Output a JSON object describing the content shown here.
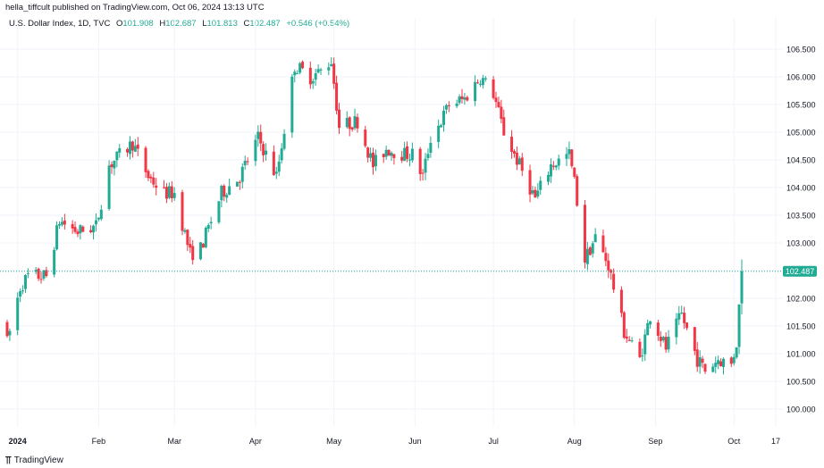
{
  "header": {
    "publisher": "hella_tiffcult published on TradingView.com, Oct 06, 2024 13:13 UTC"
  },
  "legend": {
    "symbol": "U.S. Dollar Index, 1D, TVC",
    "o_label": "O",
    "o_value": "101.908",
    "h_label": "H",
    "h_value": "102.687",
    "l_label": "L",
    "l_value": "101.813",
    "c_label": "C",
    "c_value": "102.487",
    "change": "+0.546 (+0.54%)"
  },
  "footer": {
    "brand": "TradingView",
    "logo_icon": "tradingview-logo-icon"
  },
  "colors": {
    "up": "#22ab94",
    "down": "#f23645",
    "grid": "#f0f3fa",
    "last_price_line": "#22ab94",
    "text": "#131722"
  },
  "chart_data": {
    "type": "candlestick",
    "title": "U.S. Dollar Index, 1D, TVC",
    "x_tick_labels": [
      "2024",
      "Feb",
      "Mar",
      "Apr",
      "May",
      "Jun",
      "Jul",
      "Aug",
      "Sep",
      "Oct",
      "17"
    ],
    "y_tick_labels": [
      "100.000",
      "100.500",
      "101.000",
      "101.500",
      "102.000",
      "102.500",
      "103.000",
      "103.500",
      "104.000",
      "104.500",
      "105.000",
      "105.500",
      "106.000",
      "106.500"
    ],
    "ylim": [
      99.55,
      106.8
    ],
    "last_price": 102.487,
    "last_price_label": "102.487",
    "grid": true,
    "axis_side": "right",
    "close_path": [
      [
        "2023-12-28",
        101.2
      ],
      [
        "2024-01-02",
        102.2
      ],
      [
        "2024-01-05",
        102.4
      ],
      [
        "2024-01-12",
        102.4
      ],
      [
        "2024-01-17",
        103.4
      ],
      [
        "2024-01-24",
        103.2
      ],
      [
        "2024-01-31",
        103.3
      ],
      [
        "2024-02-05",
        104.4
      ],
      [
        "2024-02-14",
        104.8
      ],
      [
        "2024-02-20",
        104.2
      ],
      [
        "2024-02-26",
        103.9
      ],
      [
        "2024-03-01",
        103.9
      ],
      [
        "2024-03-07",
        102.8
      ],
      [
        "2024-03-11",
        102.9
      ],
      [
        "2024-03-19",
        103.9
      ],
      [
        "2024-03-26",
        104.2
      ],
      [
        "2024-04-02",
        104.9
      ],
      [
        "2024-04-09",
        104.2
      ],
      [
        "2024-04-16",
        106.2
      ],
      [
        "2024-04-22",
        106.0
      ],
      [
        "2024-04-26",
        106.1
      ],
      [
        "2024-04-30",
        106.3
      ],
      [
        "2024-05-03",
        105.1
      ],
      [
        "2024-05-10",
        105.2
      ],
      [
        "2024-05-16",
        104.4
      ],
      [
        "2024-05-21",
        104.7
      ],
      [
        "2024-05-28",
        104.6
      ],
      [
        "2024-05-31",
        104.6
      ],
      [
        "2024-06-04",
        104.2
      ],
      [
        "2024-06-07",
        104.9
      ],
      [
        "2024-06-11",
        105.2
      ],
      [
        "2024-06-14",
        105.5
      ],
      [
        "2024-06-20",
        105.6
      ],
      [
        "2024-06-26",
        106.0
      ],
      [
        "2024-07-01",
        105.7
      ],
      [
        "2024-07-05",
        105.0
      ],
      [
        "2024-07-11",
        104.4
      ],
      [
        "2024-07-17",
        103.8
      ],
      [
        "2024-07-23",
        104.4
      ],
      [
        "2024-07-30",
        104.6
      ],
      [
        "2024-08-01",
        104.1
      ],
      [
        "2024-08-05",
        102.7
      ],
      [
        "2024-08-09",
        103.1
      ],
      [
        "2024-08-14",
        102.6
      ],
      [
        "2024-08-20",
        101.4
      ],
      [
        "2024-08-26",
        100.9
      ],
      [
        "2024-08-30",
        101.7
      ],
      [
        "2024-09-05",
        101.1
      ],
      [
        "2024-09-11",
        101.7
      ],
      [
        "2024-09-17",
        100.9
      ],
      [
        "2024-09-20",
        100.7
      ],
      [
        "2024-09-25",
        100.9
      ],
      [
        "2024-09-30",
        100.8
      ],
      [
        "2024-10-02",
        101.2
      ],
      [
        "2024-10-04",
        102.49
      ]
    ]
  }
}
